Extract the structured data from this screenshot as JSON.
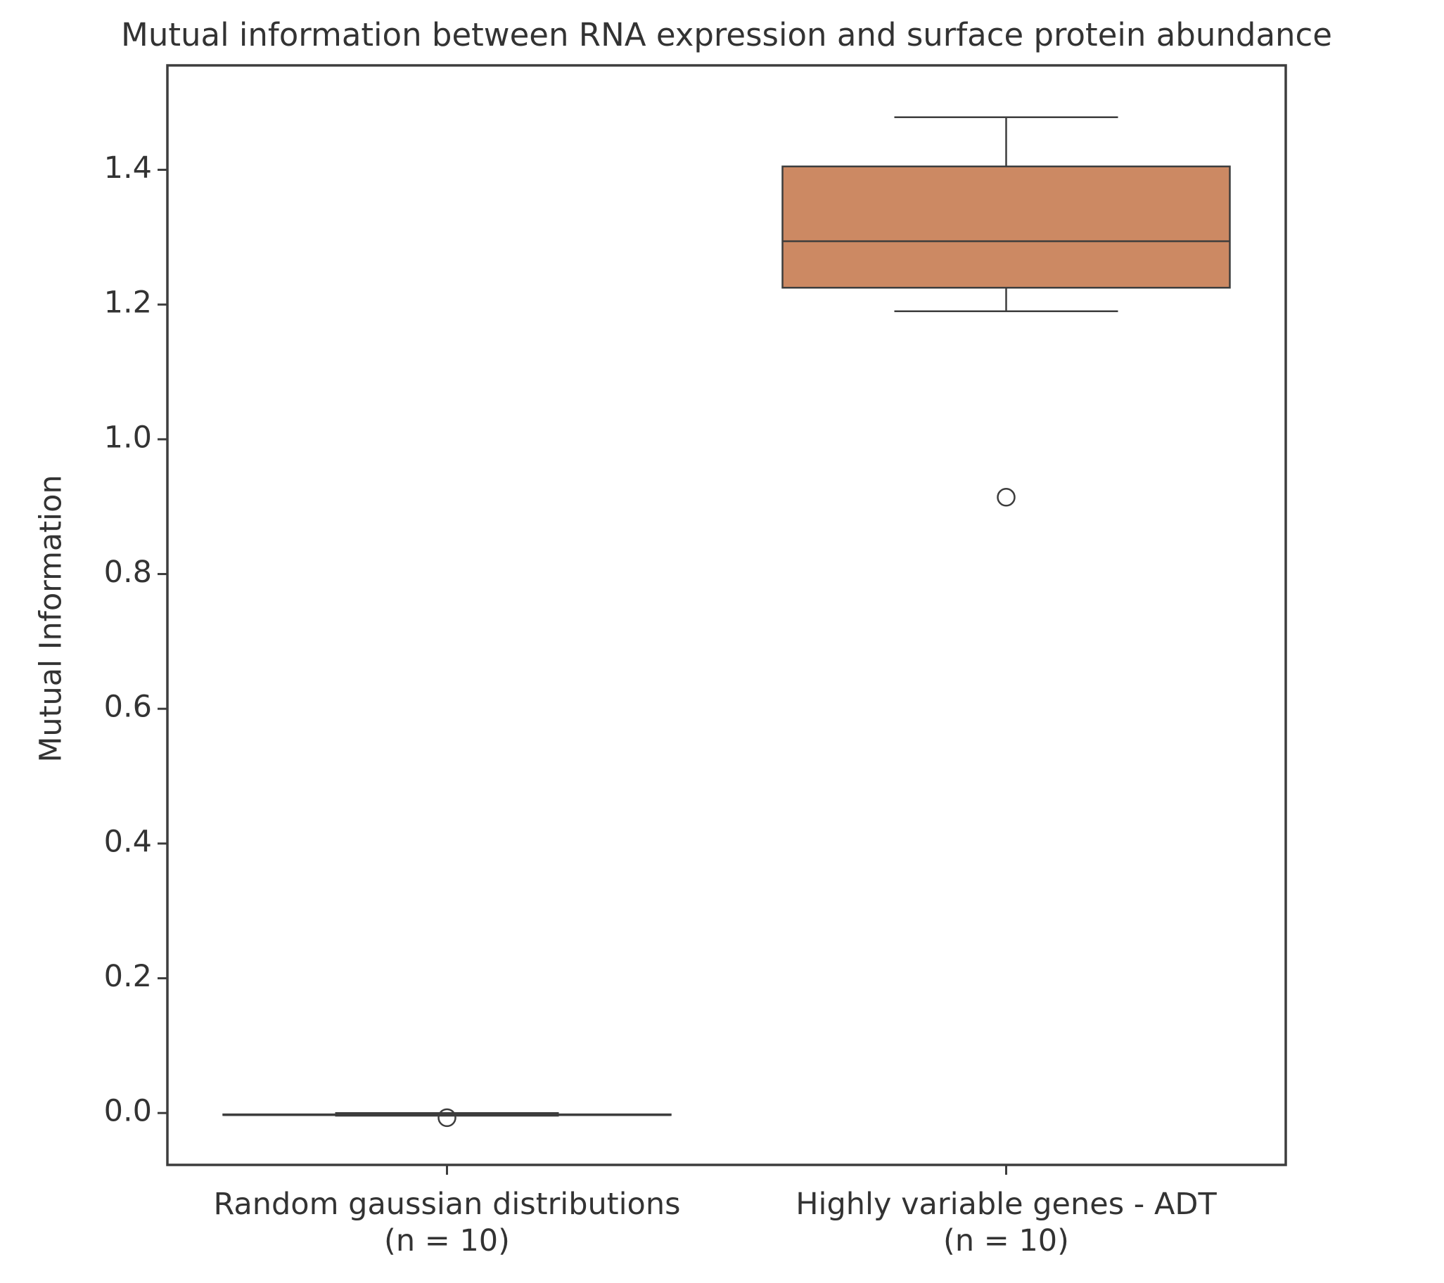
{
  "chart_data": {
    "type": "box",
    "title": "Mutual information between RNA expression and surface protein abundance",
    "ylabel": "Mutual Information",
    "categories": [
      "Random gaussian distributions\n(n = 10)",
      "Highly variable genes - ADT\n(n = 10)"
    ],
    "boxes": [
      {
        "color": "#5975a4",
        "whisker_low": -0.004,
        "q1": -0.003,
        "median": -0.003,
        "q3": -0.002,
        "whisker_high": 0.0,
        "outliers": [
          -0.007
        ]
      },
      {
        "color": "#cc8963",
        "whisker_low": 1.19,
        "q1": 1.225,
        "median": 1.294,
        "q3": 1.405,
        "whisker_high": 1.478,
        "outliers": [
          0.914
        ]
      }
    ],
    "ylim": [
      -0.077,
      1.555
    ],
    "yticks": [
      {
        "value": 0,
        "label": "0.0"
      },
      0.2,
      0.4,
      0.6,
      0.8,
      {
        "value": 1,
        "label": "1.0"
      },
      1.2,
      1.4
    ]
  }
}
